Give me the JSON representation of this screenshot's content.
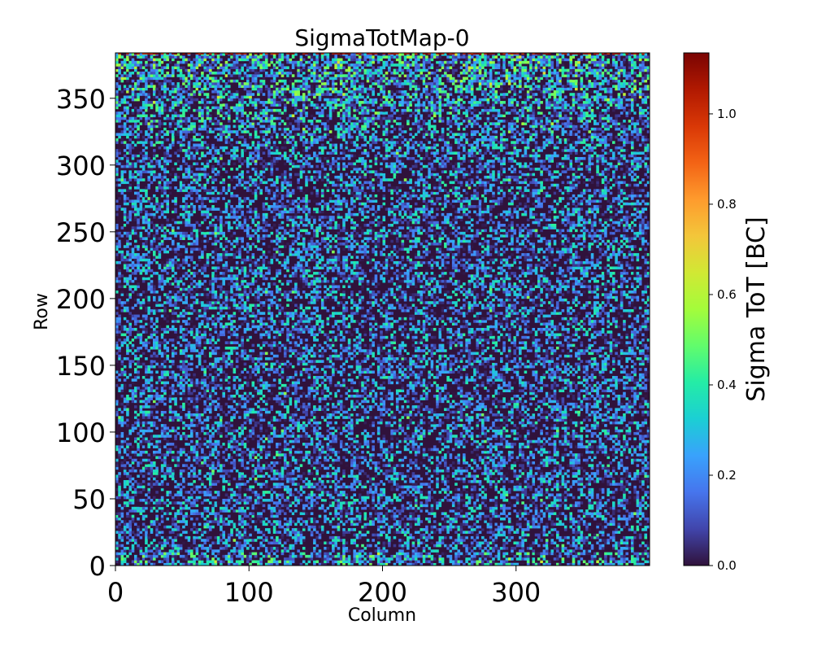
{
  "chart_data": {
    "type": "heatmap",
    "title": "SigmaTotMap-0",
    "xlabel": "Column",
    "ylabel": "Row",
    "xlim": [
      0,
      400
    ],
    "ylim": [
      0,
      384
    ],
    "x_ticks": [
      0,
      100,
      200,
      300
    ],
    "y_ticks": [
      0,
      50,
      100,
      150,
      200,
      250,
      300,
      350
    ],
    "colormap": "turbo",
    "colorbar": {
      "label": "Sigma ToT [BC]",
      "min": 0.0,
      "max": 1.135,
      "ticks": [
        0.0,
        0.2,
        0.4,
        0.6,
        0.8,
        1.0
      ],
      "tick_labels": [
        "0.0",
        "0.2",
        "0.4",
        "0.6",
        "0.8",
        "1.0"
      ]
    },
    "grid": false,
    "description_values": {
      "typical_range": [
        0.0,
        0.5
      ],
      "dominant_value": 0.0,
      "edge_rows_higher": true
    }
  },
  "colors": {
    "turbo_stops": [
      "#30123b",
      "#4145ab",
      "#4675ed",
      "#39a2fc",
      "#1bcfd4",
      "#24eca6",
      "#61fc6c",
      "#a4fc3b",
      "#d1e834",
      "#f3c63a",
      "#fe9b2d",
      "#f36315",
      "#d93806",
      "#b11901",
      "#7a0403"
    ]
  }
}
